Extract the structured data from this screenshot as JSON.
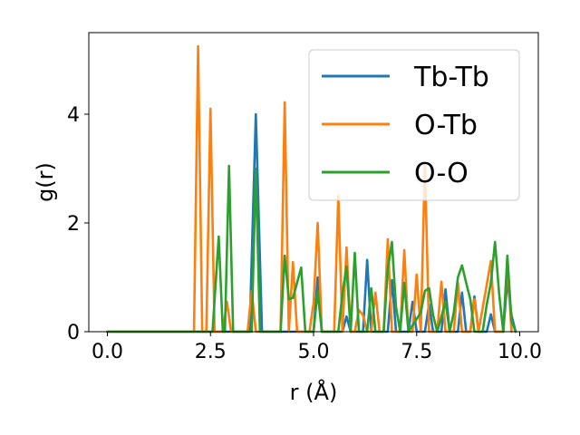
{
  "chart_data": {
    "type": "line",
    "title": "",
    "xlabel": "r (Å)",
    "ylabel": "g(r)",
    "xlim": [
      -0.45,
      10.45
    ],
    "ylim": [
      0,
      5.5
    ],
    "xticks": [
      0.0,
      2.5,
      5.0,
      7.5,
      10.0
    ],
    "xtick_labels": [
      "0.0",
      "2.5",
      "5.0",
      "7.5",
      "10.0"
    ],
    "yticks": [
      0,
      2,
      4
    ],
    "ytick_labels": [
      "0",
      "2",
      "4"
    ],
    "grid": false,
    "legend_position": "top-right",
    "series": [
      {
        "name": "Tb-Tb",
        "color": "#1f77b4",
        "points": [
          [
            0.0,
            0
          ],
          [
            3.45,
            0
          ],
          [
            3.6,
            4.0
          ],
          [
            3.75,
            0
          ],
          [
            5.0,
            0
          ],
          [
            5.1,
            1.0
          ],
          [
            5.2,
            0
          ],
          [
            5.7,
            0
          ],
          [
            5.8,
            0.28
          ],
          [
            5.9,
            0
          ],
          [
            6.2,
            0
          ],
          [
            6.3,
            1.32
          ],
          [
            6.4,
            0
          ],
          [
            6.8,
            0
          ],
          [
            6.9,
            0.95
          ],
          [
            7.0,
            0
          ],
          [
            7.3,
            0
          ],
          [
            7.4,
            0.55
          ],
          [
            7.5,
            0
          ],
          [
            7.7,
            0
          ],
          [
            7.8,
            0.5
          ],
          [
            7.9,
            0
          ],
          [
            8.1,
            0
          ],
          [
            8.2,
            0.78
          ],
          [
            8.3,
            0
          ],
          [
            8.5,
            0
          ],
          [
            8.6,
            0.72
          ],
          [
            8.7,
            0
          ],
          [
            8.8,
            0
          ],
          [
            8.9,
            0.65
          ],
          [
            9.0,
            0
          ],
          [
            9.2,
            0
          ],
          [
            9.3,
            0.32
          ],
          [
            9.4,
            0
          ],
          [
            9.6,
            0
          ],
          [
            9.7,
            0.95
          ],
          [
            9.8,
            0.3
          ],
          [
            9.9,
            0
          ]
        ]
      },
      {
        "name": "O-Tb",
        "color": "#ff7f0e",
        "points": [
          [
            0.0,
            0
          ],
          [
            2.1,
            0
          ],
          [
            2.2,
            5.25
          ],
          [
            2.3,
            0
          ],
          [
            2.4,
            0
          ],
          [
            2.5,
            4.1
          ],
          [
            2.6,
            0
          ],
          [
            2.8,
            0
          ],
          [
            2.9,
            0.55
          ],
          [
            3.0,
            0
          ],
          [
            3.4,
            0
          ],
          [
            3.5,
            0.75
          ],
          [
            3.6,
            0
          ],
          [
            4.2,
            0
          ],
          [
            4.3,
            4.22
          ],
          [
            4.4,
            0
          ],
          [
            4.5,
            1.28
          ],
          [
            4.6,
            0
          ],
          [
            4.9,
            0
          ],
          [
            5.0,
            0.52
          ],
          [
            5.1,
            2.0
          ],
          [
            5.2,
            0
          ],
          [
            5.5,
            0
          ],
          [
            5.6,
            2.5
          ],
          [
            5.7,
            0
          ],
          [
            5.8,
            1.55
          ],
          [
            5.9,
            0
          ],
          [
            6.0,
            0
          ],
          [
            6.1,
            0.4
          ],
          [
            6.2,
            0.3
          ],
          [
            6.3,
            0
          ],
          [
            6.4,
            0
          ],
          [
            6.5,
            0.72
          ],
          [
            6.6,
            0
          ],
          [
            6.7,
            0
          ],
          [
            6.8,
            1.7
          ],
          [
            6.9,
            0
          ],
          [
            7.1,
            0
          ],
          [
            7.2,
            1.5
          ],
          [
            7.3,
            0
          ],
          [
            7.4,
            0
          ],
          [
            7.5,
            1.05
          ],
          [
            7.6,
            0
          ],
          [
            7.7,
            3.1
          ],
          [
            7.8,
            0
          ],
          [
            8.0,
            0
          ],
          [
            8.1,
            0.92
          ],
          [
            8.2,
            0
          ],
          [
            8.4,
            0
          ],
          [
            8.5,
            0.9
          ],
          [
            8.6,
            0
          ],
          [
            8.8,
            0
          ],
          [
            8.9,
            0.6
          ],
          [
            9.0,
            0
          ],
          [
            9.3,
            1.3
          ],
          [
            9.4,
            0
          ],
          [
            9.6,
            0
          ],
          [
            9.7,
            1.3
          ],
          [
            9.8,
            0
          ]
        ]
      },
      {
        "name": "O-O",
        "color": "#2ca02c",
        "points": [
          [
            0.0,
            0
          ],
          [
            2.55,
            0
          ],
          [
            2.7,
            1.75
          ],
          [
            2.8,
            0
          ],
          [
            2.85,
            0
          ],
          [
            2.95,
            3.05
          ],
          [
            3.05,
            0
          ],
          [
            3.5,
            0
          ],
          [
            3.6,
            3.0
          ],
          [
            3.7,
            0
          ],
          [
            4.2,
            0
          ],
          [
            4.3,
            1.4
          ],
          [
            4.4,
            0.6
          ],
          [
            4.5,
            0.62
          ],
          [
            4.6,
            0.9
          ],
          [
            4.7,
            1.18
          ],
          [
            4.8,
            0
          ],
          [
            5.0,
            0
          ],
          [
            5.1,
            0.75
          ],
          [
            5.2,
            0
          ],
          [
            5.6,
            0
          ],
          [
            5.7,
            0.7
          ],
          [
            5.8,
            1.2
          ],
          [
            5.9,
            0
          ],
          [
            6.0,
            1.45
          ],
          [
            6.1,
            0
          ],
          [
            6.3,
            0
          ],
          [
            6.4,
            0.8
          ],
          [
            6.5,
            0
          ],
          [
            6.7,
            0
          ],
          [
            6.8,
            1.15
          ],
          [
            6.9,
            1.65
          ],
          [
            7.0,
            0.45
          ],
          [
            7.1,
            0
          ],
          [
            7.2,
            0.9
          ],
          [
            7.3,
            0
          ],
          [
            7.6,
            0.35
          ],
          [
            7.7,
            0.75
          ],
          [
            7.8,
            0.8
          ],
          [
            7.9,
            0.3
          ],
          [
            8.0,
            0
          ],
          [
            8.2,
            0.55
          ],
          [
            8.3,
            0
          ],
          [
            8.4,
            0.35
          ],
          [
            8.5,
            1.0
          ],
          [
            8.6,
            1.22
          ],
          [
            8.7,
            0.9
          ],
          [
            8.8,
            0.6
          ],
          [
            8.9,
            0
          ],
          [
            9.1,
            0
          ],
          [
            9.2,
            0.5
          ],
          [
            9.3,
            0.9
          ],
          [
            9.4,
            1.65
          ],
          [
            9.5,
            0.7
          ],
          [
            9.6,
            0
          ],
          [
            9.7,
            1.4
          ],
          [
            9.8,
            0.2
          ],
          [
            9.9,
            0
          ]
        ]
      }
    ]
  }
}
